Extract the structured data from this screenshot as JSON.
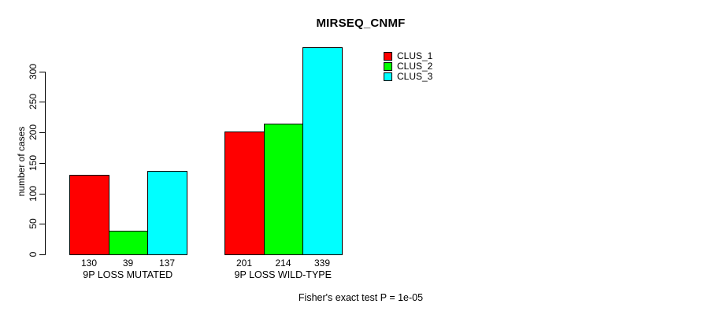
{
  "title": "MIRSEQ_CNMF",
  "annotation": "Fisher's exact test P = 1e-05",
  "chart_data": {
    "type": "bar",
    "grouped": true,
    "title": "MIRSEQ_CNMF",
    "xlabel": "",
    "ylabel": "number of cases",
    "categories": [
      "9P LOSS MUTATED",
      "9P LOSS WILD-TYPE"
    ],
    "series": [
      {
        "name": "CLUS_1",
        "color": "#FF0000",
        "values": [
          130,
          201
        ]
      },
      {
        "name": "CLUS_2",
        "color": "#00FF00",
        "values": [
          39,
          214
        ]
      },
      {
        "name": "CLUS_3",
        "color": "#00FFFF",
        "values": [
          137,
          339
        ]
      }
    ],
    "yticks": [
      0,
      50,
      100,
      150,
      200,
      250,
      300
    ],
    "ylim": [
      0,
      339
    ],
    "grid": false,
    "bar_border_color": "#000000",
    "value_labels_shown": true,
    "legend_position": "top-right"
  }
}
